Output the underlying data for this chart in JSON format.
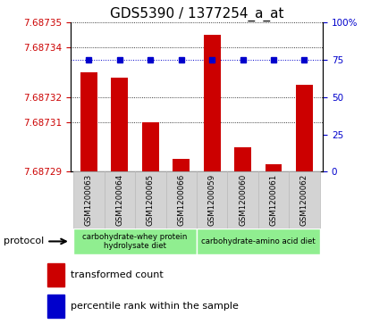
{
  "title": "GDS5390 / 1377254_a_at",
  "samples": [
    "GSM1200063",
    "GSM1200064",
    "GSM1200065",
    "GSM1200066",
    "GSM1200059",
    "GSM1200060",
    "GSM1200061",
    "GSM1200062"
  ],
  "transformed_counts": [
    7.68733,
    7.687328,
    7.68731,
    7.687295,
    7.687345,
    7.6873,
    7.687293,
    7.687325
  ],
  "percentile_ranks": [
    75,
    75,
    75,
    75,
    75,
    75,
    75,
    75
  ],
  "ylim_left": [
    7.68729,
    7.68735
  ],
  "ylim_right": [
    0,
    100
  ],
  "yticks_left": [
    7.68729,
    7.68731,
    7.68732,
    7.68734,
    7.68735
  ],
  "yticks_right": [
    0,
    25,
    50,
    75,
    100
  ],
  "ytick_labels_left": [
    "7.68729",
    "7.68731",
    "7.68732",
    "7.68734",
    "7.68735"
  ],
  "ytick_labels_right": [
    "0",
    "25",
    "50",
    "75",
    "100%"
  ],
  "bar_color": "#cc0000",
  "dot_color": "#0000cc",
  "protocol_groups": [
    {
      "label": "carbohydrate-whey protein\nhydrolysate diet",
      "samples": [
        0,
        1,
        2,
        3
      ],
      "color": "#90ee90"
    },
    {
      "label": "carbohydrate-amino acid diet",
      "samples": [
        4,
        5,
        6,
        7
      ],
      "color": "#90ee90"
    }
  ],
  "protocol_label": "protocol",
  "legend_bar_label": "transformed count",
  "legend_dot_label": "percentile rank within the sample",
  "grid_color": "#000000",
  "tick_color_left": "#cc0000",
  "tick_color_right": "#0000cc",
  "title_fontsize": 11,
  "tick_fontsize": 7.5
}
